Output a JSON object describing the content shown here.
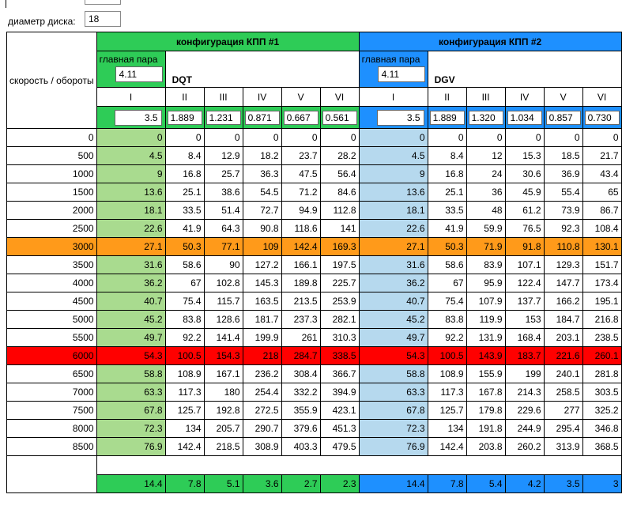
{
  "top": {
    "disk_label": "диаметр диска:",
    "disk_value": "18"
  },
  "header": {
    "row_label": "скорость / обороты",
    "config1": {
      "title": "конфигурация КПП #1",
      "main_pair_label": "главная пара",
      "main_pair": "4.11",
      "name": "DQT"
    },
    "config2": {
      "title": "конфигурация КПП #2",
      "main_pair_label": "главная пара",
      "main_pair": "4.11",
      "name": "DGV"
    },
    "gears": [
      "I",
      "II",
      "III",
      "IV",
      "V",
      "VI"
    ]
  },
  "ratios1": [
    "3.5",
    "1.889",
    "1.231",
    "0.871",
    "0.667",
    "0.561"
  ],
  "ratios2": [
    "3.5",
    "1.889",
    "1.320",
    "1.034",
    "0.857",
    "0.730"
  ],
  "colors": {
    "green_header": "#2ecc57",
    "blue_header": "#1e90ff",
    "green_col": "#a9db8f",
    "blue_col": "#b6d9ee",
    "orange_row": "#ff9a1a",
    "red_row": "#ff0000"
  },
  "rows": [
    {
      "rpm": "0",
      "c1": [
        "0",
        "0",
        "0",
        "0",
        "0",
        "0"
      ],
      "c2": [
        "0",
        "0",
        "0",
        "0",
        "0",
        "0"
      ]
    },
    {
      "rpm": "500",
      "c1": [
        "4.5",
        "8.4",
        "12.9",
        "18.2",
        "23.7",
        "28.2"
      ],
      "c2": [
        "4.5",
        "8.4",
        "12",
        "15.3",
        "18.5",
        "21.7"
      ]
    },
    {
      "rpm": "1000",
      "c1": [
        "9",
        "16.8",
        "25.7",
        "36.3",
        "47.5",
        "56.4"
      ],
      "c2": [
        "9",
        "16.8",
        "24",
        "30.6",
        "36.9",
        "43.4"
      ]
    },
    {
      "rpm": "1500",
      "c1": [
        "13.6",
        "25.1",
        "38.6",
        "54.5",
        "71.2",
        "84.6"
      ],
      "c2": [
        "13.6",
        "25.1",
        "36",
        "45.9",
        "55.4",
        "65"
      ]
    },
    {
      "rpm": "2000",
      "c1": [
        "18.1",
        "33.5",
        "51.4",
        "72.7",
        "94.9",
        "112.8"
      ],
      "c2": [
        "18.1",
        "33.5",
        "48",
        "61.2",
        "73.9",
        "86.7"
      ]
    },
    {
      "rpm": "2500",
      "c1": [
        "22.6",
        "41.9",
        "64.3",
        "90.8",
        "118.6",
        "141"
      ],
      "c2": [
        "22.6",
        "41.9",
        "59.9",
        "76.5",
        "92.3",
        "108.4"
      ]
    },
    {
      "rpm": "3000",
      "hl": "orange",
      "c1": [
        "27.1",
        "50.3",
        "77.1",
        "109",
        "142.4",
        "169.3"
      ],
      "c2": [
        "27.1",
        "50.3",
        "71.9",
        "91.8",
        "110.8",
        "130.1"
      ]
    },
    {
      "rpm": "3500",
      "c1": [
        "31.6",
        "58.6",
        "90",
        "127.2",
        "166.1",
        "197.5"
      ],
      "c2": [
        "31.6",
        "58.6",
        "83.9",
        "107.1",
        "129.3",
        "151.7"
      ]
    },
    {
      "rpm": "4000",
      "c1": [
        "36.2",
        "67",
        "102.8",
        "145.3",
        "189.8",
        "225.7"
      ],
      "c2": [
        "36.2",
        "67",
        "95.9",
        "122.4",
        "147.7",
        "173.4"
      ]
    },
    {
      "rpm": "4500",
      "c1": [
        "40.7",
        "75.4",
        "115.7",
        "163.5",
        "213.5",
        "253.9"
      ],
      "c2": [
        "40.7",
        "75.4",
        "107.9",
        "137.7",
        "166.2",
        "195.1"
      ]
    },
    {
      "rpm": "5000",
      "c1": [
        "45.2",
        "83.8",
        "128.6",
        "181.7",
        "237.3",
        "282.1"
      ],
      "c2": [
        "45.2",
        "83.8",
        "119.9",
        "153",
        "184.7",
        "216.8"
      ]
    },
    {
      "rpm": "5500",
      "c1": [
        "49.7",
        "92.2",
        "141.4",
        "199.9",
        "261",
        "310.3"
      ],
      "c2": [
        "49.7",
        "92.2",
        "131.9",
        "168.4",
        "203.1",
        "238.5"
      ]
    },
    {
      "rpm": "6000",
      "hl": "red",
      "c1": [
        "54.3",
        "100.5",
        "154.3",
        "218",
        "284.7",
        "338.5"
      ],
      "c2": [
        "54.3",
        "100.5",
        "143.9",
        "183.7",
        "221.6",
        "260.1"
      ]
    },
    {
      "rpm": "6500",
      "c1": [
        "58.8",
        "108.9",
        "167.1",
        "236.2",
        "308.4",
        "366.7"
      ],
      "c2": [
        "58.8",
        "108.9",
        "155.9",
        "199",
        "240.1",
        "281.8"
      ]
    },
    {
      "rpm": "7000",
      "c1": [
        "63.3",
        "117.3",
        "180",
        "254.4",
        "332.2",
        "394.9"
      ],
      "c2": [
        "63.3",
        "117.3",
        "167.8",
        "214.3",
        "258.5",
        "303.5"
      ]
    },
    {
      "rpm": "7500",
      "c1": [
        "67.8",
        "125.7",
        "192.8",
        "272.5",
        "355.9",
        "423.1"
      ],
      "c2": [
        "67.8",
        "125.7",
        "179.8",
        "229.6",
        "277",
        "325.2"
      ]
    },
    {
      "rpm": "8000",
      "c1": [
        "72.3",
        "134",
        "205.7",
        "290.7",
        "379.6",
        "451.3"
      ],
      "c2": [
        "72.3",
        "134",
        "191.8",
        "244.9",
        "295.4",
        "346.8"
      ]
    },
    {
      "rpm": "8500",
      "c1": [
        "76.9",
        "142.4",
        "218.5",
        "308.9",
        "403.3",
        "479.5"
      ],
      "c2": [
        "76.9",
        "142.4",
        "203.8",
        "260.2",
        "313.9",
        "368.5"
      ]
    }
  ],
  "footer": {
    "c1": [
      "14.4",
      "7.8",
      "5.1",
      "3.6",
      "2.7",
      "2.3"
    ],
    "c2": [
      "14.4",
      "7.8",
      "5.4",
      "4.2",
      "3.5",
      "3"
    ]
  }
}
